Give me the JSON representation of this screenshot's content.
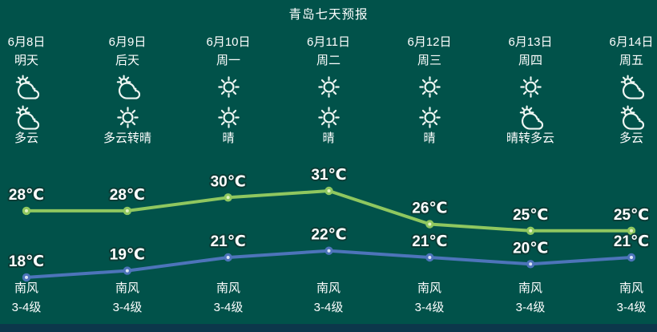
{
  "title": "青岛七天预报",
  "colors": {
    "background": "#01524a",
    "text": "#ffffff",
    "icon": "#eef6f2",
    "label_outline": "#0b3c36",
    "bottom_bar": "#0c374b"
  },
  "days": [
    {
      "date": "6月8日",
      "day": "明天",
      "icon_day": "partly-cloudy",
      "icon_night": "partly-cloudy",
      "desc": "多云",
      "wind_dir": "南风",
      "wind_level": "3-4级"
    },
    {
      "date": "6月9日",
      "day": "后天",
      "icon_day": "partly-cloudy",
      "icon_night": "sunny",
      "desc": "多云转晴",
      "wind_dir": "南风",
      "wind_level": "3-4级"
    },
    {
      "date": "6月10日",
      "day": "周一",
      "icon_day": "sunny",
      "icon_night": "sunny",
      "desc": "晴",
      "wind_dir": "南风",
      "wind_level": "3-4级"
    },
    {
      "date": "6月11日",
      "day": "周二",
      "icon_day": "sunny",
      "icon_night": "sunny",
      "desc": "晴",
      "wind_dir": "南风",
      "wind_level": "3-4级"
    },
    {
      "date": "6月12日",
      "day": "周三",
      "icon_day": "sunny",
      "icon_night": "sunny",
      "desc": "晴",
      "wind_dir": "南风",
      "wind_level": "3-4级"
    },
    {
      "date": "6月13日",
      "day": "周四",
      "icon_day": "sunny",
      "icon_night": "partly-cloudy",
      "desc": "晴转多云",
      "wind_dir": "南风",
      "wind_level": "3-4级"
    },
    {
      "date": "6月14日",
      "day": "周五",
      "icon_day": "partly-cloudy",
      "icon_night": "partly-cloudy",
      "desc": "多云",
      "wind_dir": "南风",
      "wind_level": "3-4级"
    }
  ],
  "chart_data": {
    "type": "line",
    "categories": [
      "6月8日",
      "6月9日",
      "6月10日",
      "6月11日",
      "6月12日",
      "6月13日",
      "6月14日"
    ],
    "unit": "℃",
    "series": [
      {
        "name": "high",
        "values": [
          28,
          28,
          30,
          31,
          26,
          25,
          25
        ],
        "color": "#8fc75f",
        "dot_inner": "#e2f3c2"
      },
      {
        "name": "low",
        "values": [
          18,
          19,
          21,
          22,
          21,
          20,
          21
        ],
        "color": "#4d74ba",
        "dot_inner": "#dce6f7"
      }
    ],
    "grid": false,
    "legend": false
  }
}
